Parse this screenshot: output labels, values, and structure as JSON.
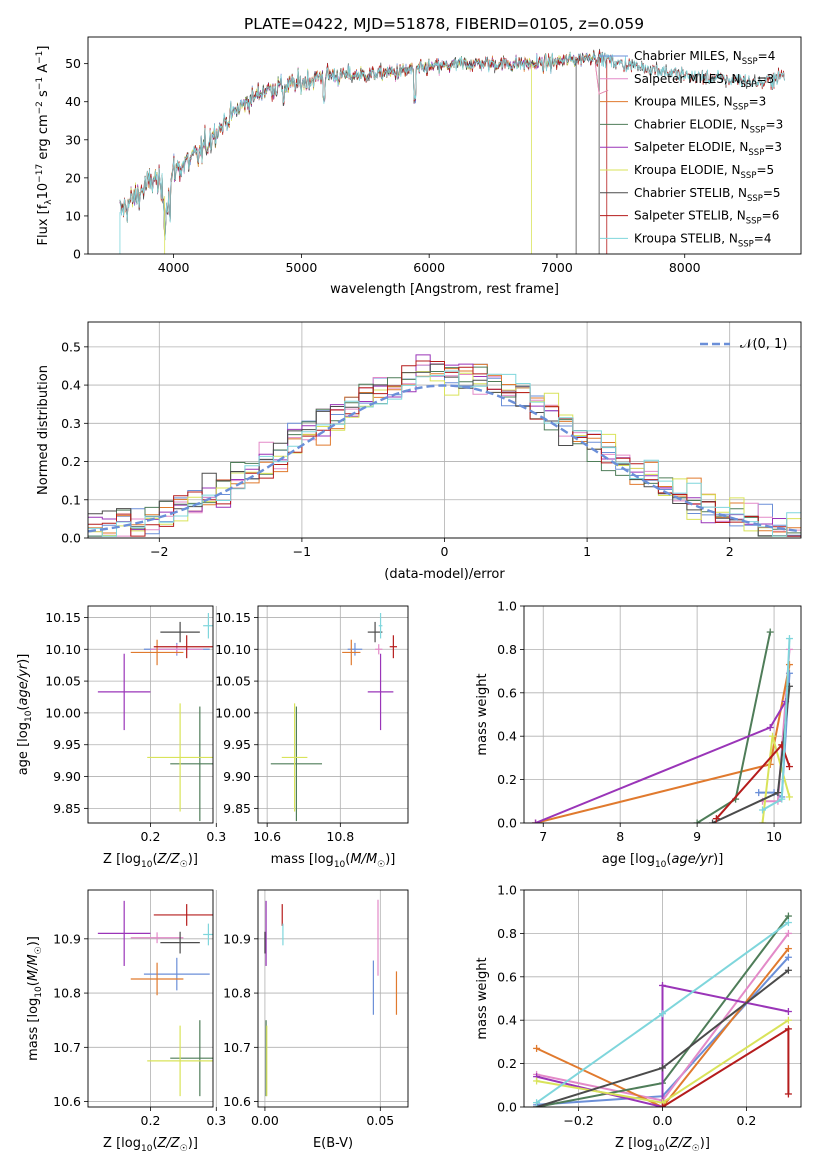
{
  "figure": {
    "title": "PLATE=0422, MJD=51878, FIBERID=0105, z=0.059"
  },
  "colors": {
    "Chabrier MILES": "#6b8fd8",
    "Salpeter MILES": "#e38ac8",
    "Kroupa MILES": "#e07a2e",
    "Chabrier ELODIE": "#4f7d59",
    "Salpeter ELODIE": "#9a35b8",
    "Kroupa ELODIE": "#d9e35a",
    "Chabrier STELIB": "#4b4b4b",
    "Salpeter STELIB": "#b51c1c",
    "Kroupa STELIB": "#7fd6dc",
    "gaussian": "#6b8fd8",
    "grid": "#b0b0b0"
  },
  "chart_data": [
    {
      "id": "spectrum",
      "type": "line",
      "title": "PLATE=0422, MJD=51878, FIBERID=0105, z=0.059",
      "xlabel": "wavelength [Angstrom, rest frame]",
      "ylabel_parts": [
        "Flux [f",
        "λ",
        "10",
        "−17",
        " erg cm",
        "−2",
        " s",
        "−1",
        " A",
        "−1",
        "]"
      ],
      "xlim": [
        3330,
        8910
      ],
      "ylim": [
        0,
        57
      ],
      "xticks": [
        4000,
        5000,
        6000,
        7000,
        8000
      ],
      "yticks": [
        0,
        10,
        20,
        30,
        40,
        50
      ],
      "grid": false,
      "legend_position": "top-right",
      "series": [
        {
          "name": "Chabrier MILES",
          "nssp": "4"
        },
        {
          "name": "Salpeter MILES",
          "nssp": "3"
        },
        {
          "name": "Kroupa MILES",
          "nssp": "3"
        },
        {
          "name": "Chabrier ELODIE",
          "nssp": "3"
        },
        {
          "name": "Salpeter ELODIE",
          "nssp": "3"
        },
        {
          "name": "Kroupa ELODIE",
          "nssp": "5"
        },
        {
          "name": "Chabrier STELIB",
          "nssp": "5"
        },
        {
          "name": "Salpeter STELIB",
          "nssp": "6"
        },
        {
          "name": "Kroupa STELIB",
          "nssp": "4"
        }
      ],
      "continuum": {
        "x": [
          3580,
          3700,
          3850,
          3950,
          4000,
          4100,
          4200,
          4300,
          4500,
          4700,
          5000,
          5200,
          5500,
          5800,
          6000,
          6300,
          6600,
          6900,
          7100,
          7300,
          7500,
          7700,
          8000,
          8300,
          8600,
          8700,
          8780
        ],
        "y": [
          11,
          15,
          20,
          14,
          22,
          24,
          26,
          31,
          38,
          43,
          45,
          47,
          47,
          48,
          49,
          50,
          50,
          50,
          51,
          52,
          50,
          49,
          47,
          46,
          45,
          46,
          47
        ]
      }
    },
    {
      "id": "residuals",
      "type": "histogram",
      "xlabel": "(data-model)/error",
      "ylabel": "Normed distribution",
      "xlim": [
        -2.5,
        2.5
      ],
      "ylim": [
        0,
        0.565
      ],
      "xticks": [
        -2,
        -1,
        0,
        1,
        2
      ],
      "yticks": [
        0.0,
        0.1,
        0.2,
        0.3,
        0.4,
        0.5
      ],
      "grid": true,
      "legend_position": "top-right",
      "gaussian_label": "𝒩(0, 1)",
      "bin_width": 0.1
    },
    {
      "id": "age-vs-z",
      "type": "errorbar",
      "xlabel": "Z [log10(Z/Z☉)]",
      "ylabel": "age  [log10(age/yr)]",
      "xlim": [
        0.105,
        0.295
      ],
      "ylim": [
        9.827,
        10.168
      ],
      "xticks": [
        0.2,
        0.3
      ],
      "yticks": [
        9.85,
        9.9,
        9.95,
        10.0,
        10.05,
        10.1,
        10.15
      ],
      "grid": true,
      "points": [
        {
          "series": "Chabrier MILES",
          "x": 0.24,
          "y": 10.1,
          "xerr": 0.05,
          "yerr": 0.01
        },
        {
          "series": "Salpeter MILES",
          "x": 0.24,
          "y": 10.1,
          "xerr": 0.04,
          "yerr": 0.008
        },
        {
          "series": "Kroupa MILES",
          "x": 0.21,
          "y": 10.095,
          "xerr": 0.04,
          "yerr": 0.02
        },
        {
          "series": "Chabrier ELODIE",
          "x": 0.275,
          "y": 9.92,
          "xerr": 0.045,
          "yerr": 0.09
        },
        {
          "series": "Salpeter ELODIE",
          "x": 0.16,
          "y": 10.033,
          "xerr": 0.04,
          "yerr": 0.06
        },
        {
          "series": "Kroupa ELODIE",
          "x": 0.245,
          "y": 9.93,
          "xerr": 0.05,
          "yerr": 0.085
        },
        {
          "series": "Chabrier STELIB",
          "x": 0.245,
          "y": 10.127,
          "xerr": 0.03,
          "yerr": 0.016
        },
        {
          "series": "Salpeter STELIB",
          "x": 0.255,
          "y": 10.104,
          "xerr": 0.05,
          "yerr": 0.018
        },
        {
          "series": "Kroupa STELIB",
          "x": 0.288,
          "y": 10.137,
          "xerr": 0.008,
          "yerr": 0.02
        }
      ]
    },
    {
      "id": "age-vs-mass",
      "type": "errorbar",
      "xlabel": "mass [log10(M/M☉)]",
      "ylabel": "",
      "xlim": [
        10.575,
        10.985
      ],
      "ylim": [
        9.827,
        10.168
      ],
      "xticks": [
        10.6,
        10.8
      ],
      "yticks": [
        9.85,
        9.9,
        9.95,
        10.0,
        10.05,
        10.1,
        10.15
      ],
      "grid": true,
      "points": [
        {
          "series": "Chabrier MILES",
          "x": 10.84,
          "y": 10.1,
          "xerr": 0.02,
          "yerr": 0.01
        },
        {
          "series": "Salpeter MILES",
          "x": 10.905,
          "y": 10.1,
          "xerr": 0.01,
          "yerr": 0.008
        },
        {
          "series": "Kroupa MILES",
          "x": 10.83,
          "y": 10.095,
          "xerr": 0.025,
          "yerr": 0.02
        },
        {
          "series": "Chabrier ELODIE",
          "x": 10.68,
          "y": 9.92,
          "xerr": 0.07,
          "yerr": 0.09
        },
        {
          "series": "Salpeter ELODIE",
          "x": 10.91,
          "y": 10.033,
          "xerr": 0.035,
          "yerr": 0.06
        },
        {
          "series": "Kroupa ELODIE",
          "x": 10.675,
          "y": 9.93,
          "xerr": 0.035,
          "yerr": 0.085
        },
        {
          "series": "Chabrier STELIB",
          "x": 10.895,
          "y": 10.127,
          "xerr": 0.02,
          "yerr": 0.016
        },
        {
          "series": "Salpeter STELIB",
          "x": 10.945,
          "y": 10.104,
          "xerr": 0.01,
          "yerr": 0.018
        },
        {
          "series": "Kroupa STELIB",
          "x": 10.91,
          "y": 10.137,
          "xerr": 0.005,
          "yerr": 0.02
        }
      ]
    },
    {
      "id": "weight-vs-age",
      "type": "line",
      "xlabel": "age  [log10(age/yr)]",
      "ylabel": "mass weight",
      "xlim": [
        6.75,
        10.35
      ],
      "ylim": [
        0,
        1.0
      ],
      "xticks": [
        7,
        8,
        9,
        10
      ],
      "yticks": [
        0.0,
        0.2,
        0.4,
        0.6,
        0.8,
        1.0
      ],
      "grid": true,
      "series": [
        {
          "name": "Chabrier MILES",
          "x": [
            9.8,
            10.0,
            10.1,
            10.2
          ],
          "y": [
            0.14,
            0.14,
            0.12,
            0.69
          ]
        },
        {
          "name": "Salpeter MILES",
          "x": [
            9.85,
            10.05,
            10.2
          ],
          "y": [
            0.1,
            0.1,
            0.8
          ]
        },
        {
          "name": "Kroupa MILES",
          "x": [
            6.9,
            9.95,
            10.2
          ],
          "y": [
            0.0,
            0.27,
            0.73
          ]
        },
        {
          "name": "Chabrier ELODIE",
          "x": [
            9.0,
            9.5,
            9.95
          ],
          "y": [
            0.0,
            0.11,
            0.88
          ]
        },
        {
          "name": "Salpeter ELODIE",
          "x": [
            6.9,
            9.95,
            10.15
          ],
          "y": [
            0.0,
            0.44,
            0.56
          ]
        },
        {
          "name": "Kroupa ELODIE",
          "x": [
            9.85,
            9.98,
            10.2
          ],
          "y": [
            0.0,
            0.4,
            0.12
          ]
        },
        {
          "name": "Chabrier STELIB",
          "x": [
            9.2,
            10.05,
            10.2
          ],
          "y": [
            0.0,
            0.14,
            0.63
          ]
        },
        {
          "name": "Salpeter STELIB",
          "x": [
            9.25,
            10.1,
            10.2
          ],
          "y": [
            0.02,
            0.36,
            0.26
          ]
        },
        {
          "name": "Kroupa STELIB",
          "x": [
            9.85,
            10.1,
            10.2
          ],
          "y": [
            0.06,
            0.11,
            0.85
          ]
        }
      ]
    },
    {
      "id": "mass-vs-z",
      "type": "errorbar",
      "xlabel": "Z [log10(Z/Z☉)]",
      "ylabel": "mass [log10(M/M☉)]",
      "xlim": [
        0.105,
        0.295
      ],
      "ylim": [
        10.59,
        10.99
      ],
      "xticks": [
        0.2,
        0.3
      ],
      "yticks": [
        10.6,
        10.7,
        10.8,
        10.9
      ],
      "grid": true,
      "points": [
        {
          "series": "Chabrier MILES",
          "x": 0.24,
          "y": 10.835,
          "xerr": 0.05,
          "yerr": 0.03
        },
        {
          "series": "Salpeter MILES",
          "x": 0.21,
          "y": 10.902,
          "xerr": 0.04,
          "yerr": 0.01
        },
        {
          "series": "Kroupa MILES",
          "x": 0.21,
          "y": 10.826,
          "xerr": 0.04,
          "yerr": 0.03
        },
        {
          "series": "Chabrier ELODIE",
          "x": 0.275,
          "y": 10.68,
          "xerr": 0.045,
          "yerr": 0.07
        },
        {
          "series": "Salpeter ELODIE",
          "x": 0.16,
          "y": 10.91,
          "xerr": 0.04,
          "yerr": 0.06
        },
        {
          "series": "Kroupa ELODIE",
          "x": 0.245,
          "y": 10.675,
          "xerr": 0.05,
          "yerr": 0.065
        },
        {
          "series": "Chabrier STELIB",
          "x": 0.245,
          "y": 10.893,
          "xerr": 0.03,
          "yerr": 0.02
        },
        {
          "series": "Salpeter STELIB",
          "x": 0.255,
          "y": 10.944,
          "xerr": 0.05,
          "yerr": 0.02
        },
        {
          "series": "Kroupa STELIB",
          "x": 0.288,
          "y": 10.908,
          "xerr": 0.008,
          "yerr": 0.02
        }
      ]
    },
    {
      "id": "mass-vs-ebv",
      "type": "errorbar",
      "xlabel": "E(B-V)",
      "ylabel": "",
      "xlim": [
        -0.003,
        0.062
      ],
      "ylim": [
        10.59,
        10.99
      ],
      "xticks": [
        0.0,
        0.05
      ],
      "yticks": [
        10.6,
        10.7,
        10.8,
        10.9
      ],
      "grid": true,
      "points": [
        {
          "series": "Chabrier MILES",
          "x": 0.047,
          "y": 10.81,
          "xerr": 0.0,
          "yerr": 0.05
        },
        {
          "series": "Salpeter MILES",
          "x": 0.049,
          "y": 10.902,
          "xerr": 0.0,
          "yerr": 0.07
        },
        {
          "series": "Kroupa MILES",
          "x": 0.057,
          "y": 10.8,
          "xerr": 0.0,
          "yerr": 0.04
        },
        {
          "series": "Chabrier ELODIE",
          "x": 0.0005,
          "y": 10.68,
          "xerr": 0.0,
          "yerr": 0.07
        },
        {
          "series": "Salpeter ELODIE",
          "x": 0.0005,
          "y": 10.91,
          "xerr": 0.0,
          "yerr": 0.06
        },
        {
          "series": "Kroupa ELODIE",
          "x": 0.0008,
          "y": 10.675,
          "xerr": 0.0,
          "yerr": 0.065
        },
        {
          "series": "Chabrier STELIB",
          "x": 0.0,
          "y": 10.893,
          "xerr": 0.0,
          "yerr": 0.02
        },
        {
          "series": "Salpeter STELIB",
          "x": 0.0075,
          "y": 10.944,
          "xerr": 0.0,
          "yerr": 0.02
        },
        {
          "series": "Kroupa STELIB",
          "x": 0.0078,
          "y": 10.908,
          "xerr": 0.0,
          "yerr": 0.02
        }
      ]
    },
    {
      "id": "weight-vs-z",
      "type": "line",
      "xlabel": "Z [log10(Z/Z☉)]",
      "ylabel": "mass weight",
      "xlim": [
        -0.33,
        0.33
      ],
      "ylim": [
        0,
        1.0
      ],
      "xticks": [
        -0.2,
        0.0,
        0.2
      ],
      "yticks": [
        0.0,
        0.2,
        0.4,
        0.6,
        0.8,
        1.0
      ],
      "grid": true,
      "series": [
        {
          "name": "Chabrier MILES",
          "x": [
            -0.3,
            0.0,
            0.3
          ],
          "y": [
            0.01,
            0.05,
            0.69
          ]
        },
        {
          "name": "Salpeter MILES",
          "x": [
            -0.3,
            0.0,
            0.3
          ],
          "y": [
            0.15,
            0.03,
            0.8
          ]
        },
        {
          "name": "Kroupa MILES",
          "x": [
            -0.3,
            0.0,
            0.3
          ],
          "y": [
            0.27,
            0.0,
            0.73
          ]
        },
        {
          "name": "Chabrier ELODIE",
          "x": [
            -0.3,
            0.0,
            0.3
          ],
          "y": [
            0.0,
            0.11,
            0.88
          ]
        },
        {
          "name": "Salpeter ELODIE",
          "x": [
            -0.3,
            0.0,
            0.0,
            0.3
          ],
          "y": [
            0.14,
            0.0,
            0.56,
            0.44
          ]
        },
        {
          "name": "Kroupa ELODIE",
          "x": [
            -0.3,
            0.0,
            0.3
          ],
          "y": [
            0.12,
            0.02,
            0.4
          ]
        },
        {
          "name": "Chabrier STELIB",
          "x": [
            -0.3,
            0.0,
            0.3
          ],
          "y": [
            0.0,
            0.18,
            0.63
          ]
        },
        {
          "name": "Salpeter STELIB",
          "x": [
            0.0,
            0.3,
            0.3
          ],
          "y": [
            0.0,
            0.36,
            0.06
          ]
        },
        {
          "name": "Kroupa STELIB",
          "x": [
            -0.3,
            0.0,
            0.3
          ],
          "y": [
            0.02,
            0.43,
            0.85
          ]
        }
      ]
    }
  ]
}
